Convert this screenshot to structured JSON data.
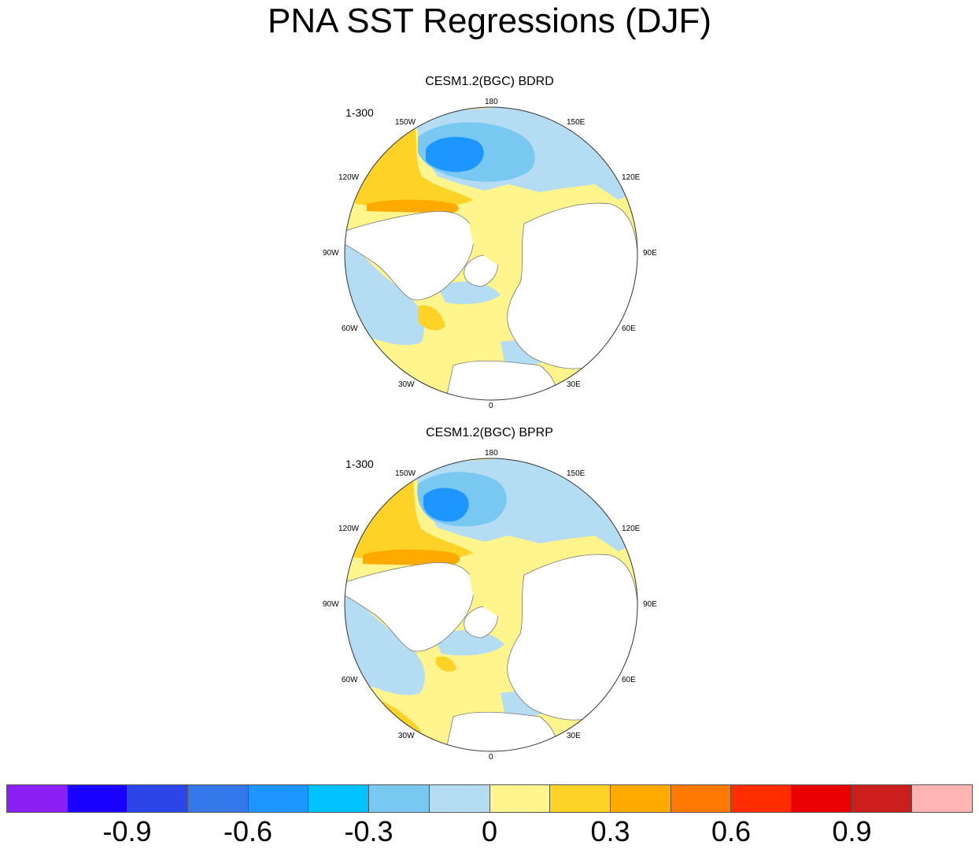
{
  "title": "PNA SST Regressions (DJF)",
  "panels": [
    {
      "title": "CESM1.2(BGC) BDRD",
      "label": "1-300"
    },
    {
      "title": "CESM1.2(BGC) BPRP",
      "label": "1-300"
    }
  ],
  "longitudes": {
    "lon_180": "180",
    "lon_150e": "150E",
    "lon_120e": "120E",
    "lon_90e": "90E",
    "lon_60e": "60E",
    "lon_30e": "30E",
    "lon_0": "0",
    "lon_30w": "30W",
    "lon_60w": "60W",
    "lon_90w": "90W",
    "lon_120w": "120W",
    "lon_150w": "150W"
  },
  "colorbar": {
    "colors": [
      "#8b20f5",
      "#1a00ff",
      "#2b45e6",
      "#3578eb",
      "#1e96ff",
      "#00c3ff",
      "#78c8f2",
      "#b4dcf2",
      "#fff58c",
      "#ffd228",
      "#ffaa00",
      "#ff7800",
      "#ff2d00",
      "#eb0000",
      "#cd1e1e",
      "#ffb4b4"
    ],
    "labels": [
      "-0.9",
      "-0.6",
      "-0.3",
      "0",
      "0.3",
      "0.6",
      "0.9"
    ]
  },
  "legend_colors": {
    "land": "#ffffff",
    "coast": "#777777",
    "zero": "#fff58c",
    "neg1": "#b4dcf2",
    "neg2": "#78c8f2",
    "neg3": "#1e96ff",
    "pos1": "#ffd228",
    "pos2": "#ffaa00",
    "pos3": "#ff7800"
  }
}
